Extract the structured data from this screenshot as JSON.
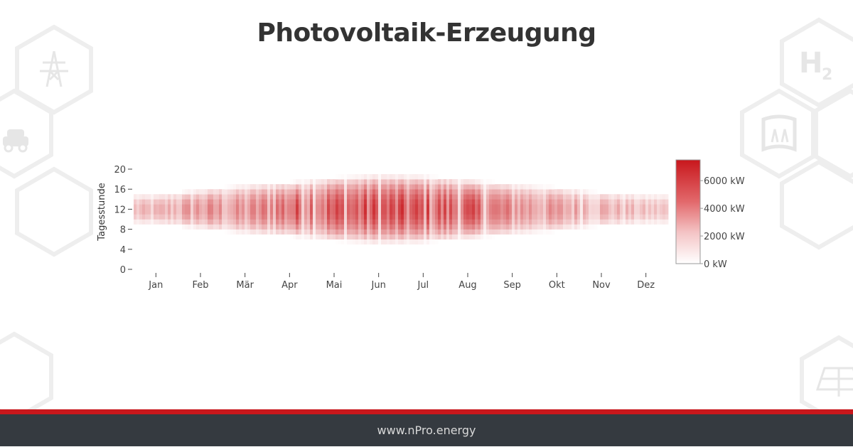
{
  "header": {
    "title": "Photovoltaik-Erzeugung"
  },
  "footer": {
    "url": "www.nPro.energy"
  },
  "colors": {
    "accent": "#c8171c",
    "footer_bg": "#353a40",
    "heat_high": "#c8171c",
    "heat_low": "#ffffff"
  },
  "decorations": [
    "power-tower-icon",
    "electric-car-icon",
    "hydrogen-icon",
    "water-heat-icon",
    "solar-panel-icon"
  ],
  "chart_data": {
    "type": "heatmap",
    "title": "",
    "xlabel": "",
    "ylabel": "Tagesstunde",
    "x_categories": [
      "Jan",
      "Feb",
      "Mär",
      "Apr",
      "Mai",
      "Jun",
      "Jul",
      "Aug",
      "Sep",
      "Okt",
      "Nov",
      "Dez"
    ],
    "y_ticks": [
      0,
      4,
      8,
      12,
      16,
      20
    ],
    "ylim": [
      0,
      22
    ],
    "colorbar": {
      "ticks": [
        "0 kW",
        "2000 kW",
        "4000 kW",
        "6000 kW"
      ],
      "tick_values": [
        0,
        2000,
        4000,
        6000
      ],
      "range": [
        0,
        7500
      ]
    },
    "monthly_peak_kw": [
      2800,
      4500,
      4200,
      6500,
      6800,
      7000,
      6800,
      6500,
      4800,
      4000,
      3500,
      2500
    ],
    "daylight_hours": [
      [
        9,
        15
      ],
      [
        8,
        16
      ],
      [
        7,
        17
      ],
      [
        6.5,
        17.5
      ],
      [
        5.5,
        18.5
      ],
      [
        5,
        19
      ],
      [
        5.2,
        18.8
      ],
      [
        6,
        18
      ],
      [
        6.8,
        17.2
      ],
      [
        7.5,
        16.5
      ],
      [
        8.5,
        15.5
      ],
      [
        9,
        15
      ]
    ],
    "grid": false,
    "legend": "right"
  }
}
